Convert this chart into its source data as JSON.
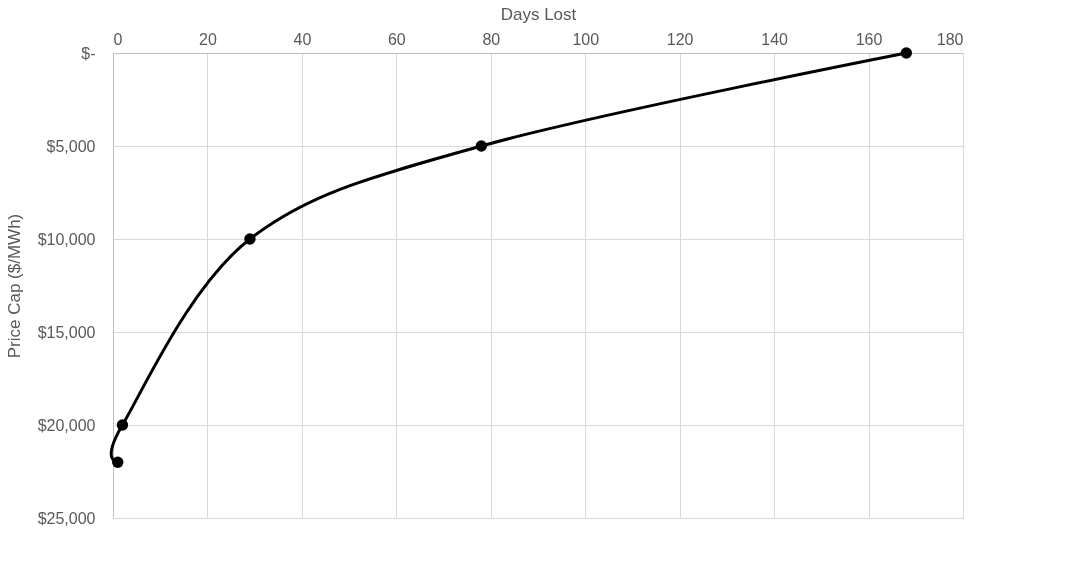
{
  "chart_data": {
    "type": "line",
    "xlabel": "Days Lost",
    "ylabel": "Price Cap ($/MWh)",
    "x": [
      1,
      2,
      29,
      78,
      168
    ],
    "series": [
      {
        "color": "#000000",
        "values": [
          22000,
          20000,
          10000,
          5000,
          0
        ]
      }
    ],
    "xlim": [
      0,
      180
    ],
    "xticks": [
      0,
      20,
      40,
      60,
      80,
      100,
      120,
      140,
      160,
      180
    ],
    "ylim": [
      25000,
      0
    ],
    "yticks": [
      {
        "value": 0,
        "label": "$-"
      },
      {
        "value": 5000,
        "label": "$5,000"
      },
      {
        "value": 10000,
        "label": "$10,000"
      },
      {
        "value": 15000,
        "label": "$15,000"
      },
      {
        "value": 20000,
        "label": "$20,000"
      },
      {
        "value": 25000,
        "label": "$25,000"
      }
    ],
    "grid": true,
    "marker": "circle",
    "line_style": "solid"
  }
}
